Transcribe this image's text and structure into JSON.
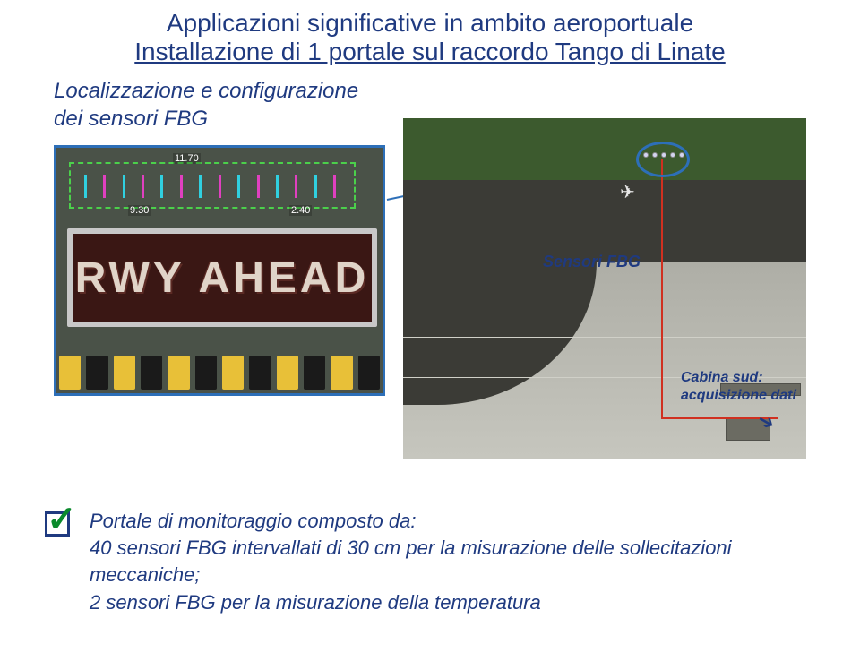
{
  "colors": {
    "heading": "#1f3a80",
    "body": "#1f3a80",
    "border": "#2d6fb8",
    "check_green": "#0a8a2c",
    "sign_bg": "#7d2f28",
    "stripe_yellow": "#e8c038",
    "stripe_black": "#1a1a1a",
    "tick_magenta": "#e040c0",
    "tick_cyan": "#30d0e0"
  },
  "title": {
    "line1": "Applicazioni significative in  ambito aeroportuale",
    "line2": "Installazione di 1 portale sul raccordo Tango di Linate"
  },
  "subtitle": {
    "line1": "Localizzazione e configurazione",
    "line2": "dei sensori FBG"
  },
  "detail": {
    "sign_text": "RWY  AHEAD",
    "meas_top": "11.70",
    "meas_bottom_left": "9.30",
    "meas_bottom_right": "2.40"
  },
  "aerial": {
    "sensor_label": "Sensori FBG",
    "cabin_label_line1": "Cabina sud:",
    "cabin_label_line2": "acquisizione dati"
  },
  "bullet": {
    "title": "Portale di monitoraggio composto da:",
    "line1": "40 sensori FBG intervallati di 30 cm per la misurazione delle sollecitazioni meccaniche;",
    "line2": "2 sensori FBG per la misurazione della temperatura"
  }
}
